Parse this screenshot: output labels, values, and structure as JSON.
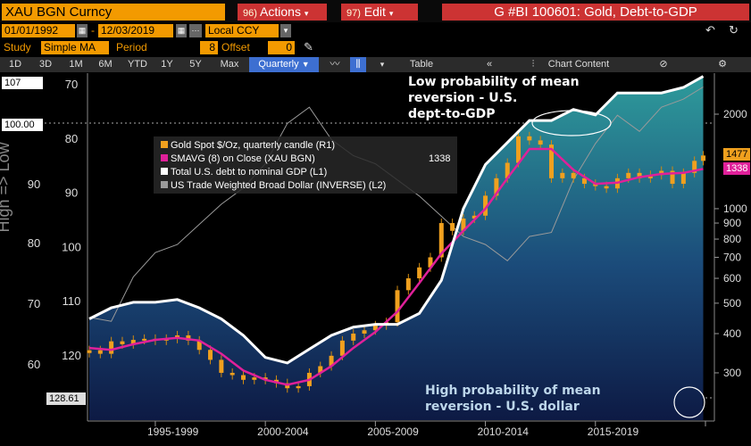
{
  "header": {
    "ticker": "XAU BGN Curncy",
    "actions": {
      "num": "96)",
      "label": "Actions"
    },
    "edit": {
      "num": "97)",
      "label": "Edit"
    },
    "title": "G #BI 100601: Gold, Debt-to-GDP"
  },
  "settings": {
    "start_date": "01/01/1992",
    "end_date": "12/03/2019",
    "currency": "Local CCY",
    "study_label": "Study",
    "study_value": "Simple MA",
    "period_label": "Period",
    "period_value": "8",
    "offset_label": "Offset",
    "offset_value": "0"
  },
  "toolbar": {
    "ranges": [
      "1D",
      "3D",
      "1M",
      "6M",
      "YTD",
      "1Y",
      "5Y",
      "Max"
    ],
    "frequency": "Quarterly",
    "table": "Table",
    "chart_content": "Chart Content"
  },
  "annotations": {
    "top": [
      "Low probability of mean",
      "reversion - U.S.",
      "dept-to-GDP"
    ],
    "bottom": [
      "High probability of mean",
      "reversion - U.S. dollar"
    ],
    "rotated_axis": "High => Low",
    "legend_value": "1338"
  },
  "colors": {
    "gold": "#f0a01e",
    "ma": "#e0209a",
    "debt": "#ffffff",
    "usd": "#9a9a9a",
    "accent_orange": "#f39a00",
    "title_red": "#cc3333"
  },
  "chart_data": {
    "type": "line",
    "x_tick_labels": [
      "1995-1999",
      "2000-2004",
      "2005-2009",
      "2010-2014",
      "2015-2019"
    ],
    "legend": [
      {
        "name": "Gold Spot $/Oz, quarterly candle (R1)",
        "color": "#f0a01e"
      },
      {
        "name": "SMAVG (8) on Close (XAU BGN)",
        "color": "#e0209a"
      },
      {
        "name": "Total U.S. debt to nominal GDP (L1)",
        "color": "#ffffff"
      },
      {
        "name": "US Trade Weighted Broad Dollar (INVERSE) (L2)",
        "color": "#9a9a9a"
      }
    ],
    "left_axis_1": {
      "ticks": [
        70,
        80,
        90,
        100,
        110,
        120
      ],
      "inverted": true
    },
    "left_axis_2": {
      "ticks": [
        60,
        70,
        80,
        90
      ]
    },
    "right_axis": {
      "ticks": [
        2000,
        1000,
        900,
        800,
        700,
        600,
        500,
        400,
        300
      ],
      "scale": "log"
    },
    "value_tags": {
      "left_top": "107",
      "left_mid": "100.00",
      "left_bottom": "128.61",
      "right_gold": "1477",
      "right_ma": "1338"
    },
    "series": [
      {
        "name": "Gold Spot $/Oz, quarterly candle (R1)",
        "x": [
          1992.0,
          1992.5,
          1993.0,
          1993.5,
          1994.0,
          1994.5,
          1995.0,
          1995.5,
          1996.0,
          1996.5,
          1997.0,
          1997.5,
          1998.0,
          1998.5,
          1999.0,
          1999.5,
          2000.0,
          2000.5,
          2001.0,
          2001.5,
          2002.0,
          2002.5,
          2003.0,
          2003.5,
          2004.0,
          2004.5,
          2005.0,
          2005.5,
          2006.0,
          2006.5,
          2007.0,
          2007.5,
          2008.0,
          2008.5,
          2009.0,
          2009.5,
          2010.0,
          2010.5,
          2011.0,
          2011.5,
          2012.0,
          2012.5,
          2013.0,
          2013.5,
          2014.0,
          2014.5,
          2015.0,
          2015.5,
          2016.0,
          2016.5,
          2017.0,
          2017.5,
          2018.0,
          2018.5,
          2019.0,
          2019.5,
          2019.9
        ],
        "values": [
          354,
          345,
          378,
          370,
          382,
          385,
          380,
          385,
          395,
          380,
          355,
          330,
          300,
          295,
          285,
          290,
          285,
          278,
          268,
          272,
          300,
          315,
          340,
          380,
          400,
          410,
          425,
          435,
          550,
          600,
          650,
          700,
          900,
          850,
          930,
          950,
          1100,
          1250,
          1400,
          1700,
          1650,
          1600,
          1250,
          1300,
          1250,
          1200,
          1180,
          1160,
          1250,
          1300,
          1250,
          1280,
          1320,
          1200,
          1300,
          1420,
          1477
        ]
      },
      {
        "name": "SMAVG (8) on Close (XAU BGN)",
        "x": [
          1992.0,
          1993.0,
          1994.0,
          1995.0,
          1996.0,
          1997.0,
          1998.0,
          1999.0,
          2000.0,
          2001.0,
          2002.0,
          2003.0,
          2004.0,
          2005.0,
          2006.0,
          2007.0,
          2008.0,
          2009.0,
          2010.0,
          2011.0,
          2012.0,
          2013.0,
          2014.0,
          2015.0,
          2016.0,
          2017.0,
          2018.0,
          2019.0,
          2019.9
        ],
        "values": [
          360,
          355,
          370,
          382,
          388,
          380,
          345,
          305,
          285,
          275,
          285,
          315,
          360,
          405,
          470,
          580,
          720,
          850,
          1000,
          1250,
          1550,
          1550,
          1330,
          1200,
          1210,
          1260,
          1290,
          1300,
          1338
        ]
      },
      {
        "name": "Total U.S. debt to nominal GDP (L1)",
        "x": [
          1992.0,
          1993.0,
          1994.0,
          1995.0,
          1996.0,
          1997.0,
          1998.0,
          1999.0,
          2000.0,
          2001.0,
          2002.0,
          2003.0,
          2004.0,
          2005.0,
          2006.0,
          2007.0,
          2008.0,
          2009.0,
          2010.0,
          2011.0,
          2012.0,
          2013.0,
          2014.0,
          2015.0,
          2016.0,
          2017.0,
          2018.0,
          2019.0,
          2019.9
        ],
        "values": [
          63,
          65,
          66,
          66,
          66.5,
          65,
          63,
          60,
          56,
          55,
          57.5,
          60,
          61.5,
          62,
          62,
          64,
          70,
          83,
          91,
          95,
          99,
          99,
          101,
          100,
          104,
          104,
          104,
          105,
          107
        ]
      },
      {
        "name": "US Trade Weighted Broad Dollar (INVERSE) (L2)",
        "x": [
          1992.0,
          1993.0,
          1994.0,
          1995.0,
          1996.0,
          1997.0,
          1998.0,
          1999.0,
          2000.0,
          2001.0,
          2002.0,
          2003.0,
          2004.0,
          2005.0,
          2006.0,
          2007.0,
          2008.0,
          2009.0,
          2010.0,
          2011.0,
          2012.0,
          2013.0,
          2014.0,
          2015.0,
          2016.0,
          2017.0,
          2018.0,
          2019.0,
          2019.9
        ],
        "values": [
          72,
          71,
          82,
          88,
          90,
          95,
          100,
          104,
          110,
          120,
          124,
          116,
          112,
          110,
          106,
          102,
          97,
          92,
          90,
          86,
          92,
          93,
          106,
          115,
          122,
          118,
          124,
          126,
          129
        ]
      }
    ]
  }
}
